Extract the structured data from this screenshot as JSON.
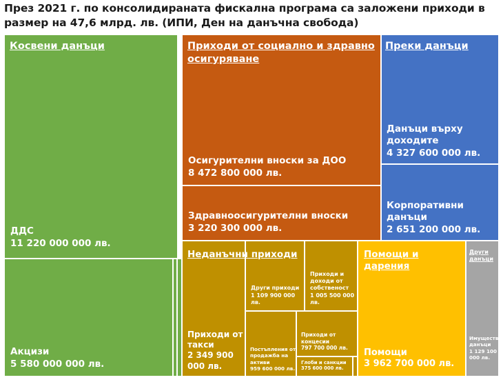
{
  "title_lines": [
    "През 2021 г. по консолидираната фискална програма са заложени приходи в",
    "размер на 47,6 млрд. лв. (ИПИ, Ден на данъчна свобода)"
  ],
  "chart_data": {
    "type": "treemap",
    "groups": [
      {
        "name": "Косвени данъци",
        "color": "#70ad47",
        "items": [
          {
            "label": "ДДС",
            "value_text": "11 220 000 000 лв.",
            "value": 11220000000
          },
          {
            "label": "Акцизи",
            "value_text": "5 580 000 000 лв.",
            "value": 5580000000
          },
          {
            "label": "",
            "value_text": "",
            "value": null
          },
          {
            "label": "",
            "value_text": "",
            "value": null
          }
        ]
      },
      {
        "name": "Приходи от социално и здравно осигуряване",
        "color": "#c55a11",
        "items": [
          {
            "label": "Осигурителни вноски за ДОО",
            "value_text": "8 472 800 000 лв.",
            "value": 8472800000
          },
          {
            "label": "Здравноосигурителни вноски",
            "value_text": "3 220 300 000 лв.",
            "value": 3220300000
          }
        ]
      },
      {
        "name": "Преки данъци",
        "color": "#4472c4",
        "items": [
          {
            "label": "Данъци върху доходите",
            "value_text": "4 327 600 000 лв.",
            "value": 4327600000
          },
          {
            "label": "Корпоративни данъци",
            "value_text": "2 651 200 000 лв.",
            "value": 2651200000
          }
        ]
      },
      {
        "name": "Неданъчни приходи",
        "color": "#bf9000",
        "items": [
          {
            "label": "Приходи от такси",
            "value_text": "2 349 900 000 лв.",
            "value": 2349900000
          },
          {
            "label": "Други приходи",
            "value_text": "1 109 900 000 лв.",
            "value": 1109900000
          },
          {
            "label": "Приходи и доходи от собственост",
            "value_text": "1 005 500 000 лв.",
            "value": 1005500000
          },
          {
            "label": "Постъпления от продажба на активи",
            "value_text": "959 600 000 лв.",
            "value": 959600000
          },
          {
            "label": "Приходи от концесии",
            "value_text": "797 700 000 лв.",
            "value": 797700000
          },
          {
            "label": "Глоби и санкции",
            "value_text": "375 600 000 лв.",
            "value": 375600000
          },
          {
            "label": "",
            "value_text": "",
            "value": null
          }
        ]
      },
      {
        "name": "Помощи и дарения",
        "color": "#ffc000",
        "items": [
          {
            "label": "Помощи",
            "value_text": "3 962 700 000 лв.",
            "value": 3962700000
          }
        ]
      },
      {
        "name": "Други данъци",
        "color": "#a5a5a5",
        "items": [
          {
            "label": "Имуществени данъци",
            "value_text": "1 129 100 000 лв.",
            "value": 1129100000
          }
        ]
      }
    ]
  }
}
